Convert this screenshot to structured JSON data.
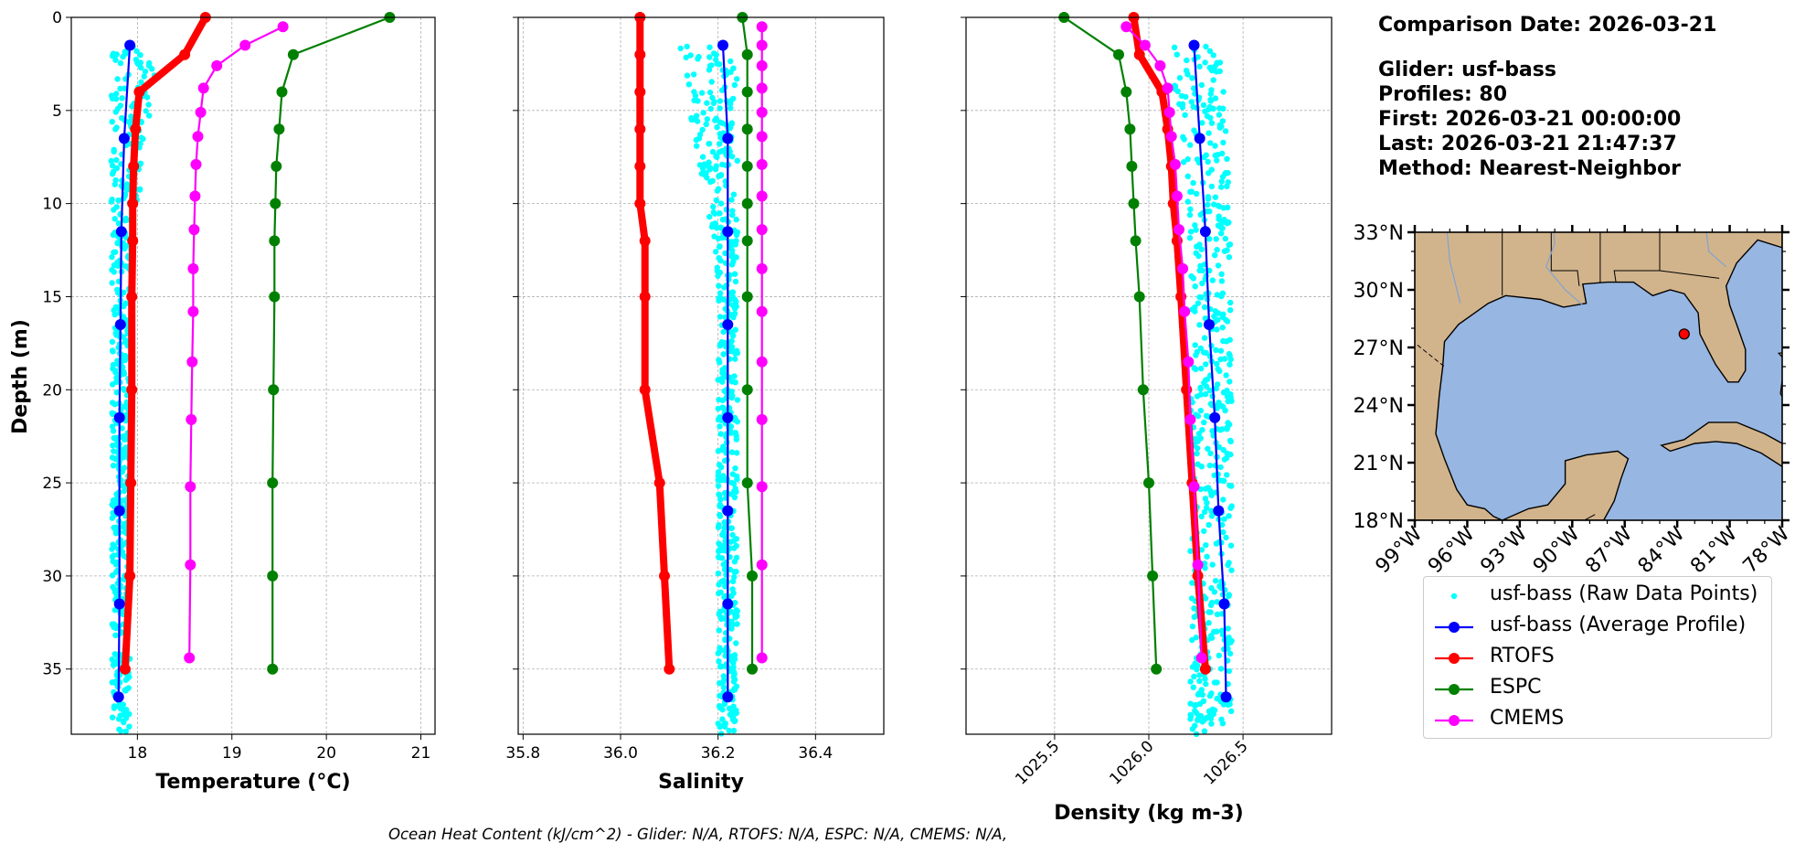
{
  "chart_data": [
    {
      "type": "line",
      "panel": "temperature",
      "xlabel": "Temperature (°C)",
      "ylabel": "Depth (m)",
      "xlim": [
        17.3,
        21.15
      ],
      "ylim": [
        38.5,
        0
      ],
      "xticks": [
        18,
        19,
        20,
        21
      ],
      "xtick_labels": [
        "18",
        "19",
        "20",
        "21"
      ],
      "yticks": [
        0,
        5,
        10,
        15,
        20,
        25,
        30,
        35
      ],
      "ytick_labels": [
        "0",
        "5",
        "10",
        "15",
        "20",
        "25",
        "30",
        "35"
      ],
      "grid": true,
      "raw_points": {
        "name": "usf-bass (Raw Data Points)",
        "depth_range": [
          1.5,
          38.5
        ],
        "value_range": [
          17.73,
          17.92
        ],
        "near_surface_spread": [
          17.7,
          18.3
        ]
      },
      "series": [
        {
          "name": "usf-bass (Average Profile)",
          "depth": [
            1.5,
            6.5,
            11.5,
            16.5,
            21.5,
            26.5,
            31.5,
            36.5
          ],
          "values": [
            17.92,
            17.86,
            17.83,
            17.82,
            17.81,
            17.81,
            17.81,
            17.8
          ]
        },
        {
          "name": "RTOFS",
          "depth": [
            0,
            2,
            4,
            6,
            8,
            10,
            12,
            15,
            20,
            25,
            30,
            35
          ],
          "values": [
            18.72,
            18.5,
            18.02,
            17.98,
            17.96,
            17.95,
            17.95,
            17.94,
            17.94,
            17.93,
            17.92,
            17.87
          ]
        },
        {
          "name": "ESPC",
          "depth": [
            0,
            2,
            4,
            6,
            8,
            10,
            12,
            15,
            20,
            25,
            30,
            35
          ],
          "values": [
            20.67,
            19.65,
            19.53,
            19.5,
            19.47,
            19.46,
            19.45,
            19.45,
            19.44,
            19.43,
            19.43,
            19.43
          ]
        },
        {
          "name": "CMEMS",
          "depth": [
            0.5,
            1.5,
            2.6,
            3.8,
            5.1,
            6.4,
            7.9,
            9.6,
            11.4,
            13.5,
            15.8,
            18.5,
            21.6,
            25.2,
            29.4,
            34.4
          ],
          "values": [
            19.54,
            19.14,
            18.84,
            18.7,
            18.67,
            18.64,
            18.62,
            18.61,
            18.6,
            18.59,
            18.59,
            18.58,
            18.57,
            18.56,
            18.56,
            18.55
          ]
        }
      ]
    },
    {
      "type": "line",
      "panel": "salinity",
      "xlabel": "Salinity",
      "xlim": [
        35.79,
        36.54
      ],
      "ylim": [
        38.5,
        0
      ],
      "xticks": [
        35.8,
        36.0,
        36.2,
        36.4
      ],
      "xtick_labels": [
        "35.8",
        "36.0",
        "36.2",
        "36.4"
      ],
      "grid": true,
      "raw_points": {
        "name": "usf-bass (Raw Data Points)",
        "depth_range": [
          1.5,
          38.5
        ],
        "value_range": [
          36.2,
          36.24
        ],
        "near_surface_spread": [
          36.12,
          36.24
        ]
      },
      "series": [
        {
          "name": "usf-bass (Average Profile)",
          "depth": [
            1.5,
            6.5,
            11.5,
            16.5,
            21.5,
            26.5,
            31.5,
            36.5
          ],
          "values": [
            36.21,
            36.22,
            36.22,
            36.22,
            36.22,
            36.22,
            36.22,
            36.22
          ]
        },
        {
          "name": "RTOFS",
          "depth": [
            0,
            2,
            4,
            6,
            8,
            10,
            12,
            15,
            20,
            25,
            30,
            35
          ],
          "values": [
            36.04,
            36.04,
            36.04,
            36.04,
            36.04,
            36.04,
            36.05,
            36.05,
            36.05,
            36.08,
            36.09,
            36.1
          ]
        },
        {
          "name": "ESPC",
          "depth": [
            0,
            2,
            4,
            6,
            8,
            10,
            12,
            15,
            20,
            25,
            30,
            35
          ],
          "values": [
            36.25,
            36.26,
            36.26,
            36.26,
            36.26,
            36.26,
            36.26,
            36.26,
            36.26,
            36.26,
            36.27,
            36.27
          ]
        },
        {
          "name": "CMEMS",
          "depth": [
            0.5,
            1.5,
            2.6,
            3.8,
            5.1,
            6.4,
            7.9,
            9.6,
            11.4,
            13.5,
            15.8,
            18.5,
            21.6,
            25.2,
            29.4,
            34.4
          ],
          "values": [
            36.29,
            36.29,
            36.29,
            36.29,
            36.29,
            36.29,
            36.29,
            36.29,
            36.29,
            36.29,
            36.29,
            36.29,
            36.29,
            36.29,
            36.29,
            36.29
          ]
        }
      ]
    },
    {
      "type": "line",
      "panel": "density",
      "xlabel": "Density (kg m-3)",
      "xlim": [
        1025.03,
        1026.97
      ],
      "ylim": [
        38.5,
        0
      ],
      "xticks": [
        1025.5,
        1026.0,
        1026.5
      ],
      "xtick_labels": [
        "1025.5",
        "1026.0",
        "1026.5"
      ],
      "grid": true,
      "raw_points": {
        "name": "usf-bass (Raw Data Points)",
        "depth_range": [
          1.5,
          38.5
        ],
        "value_range": [
          1026.22,
          1026.44
        ],
        "near_surface_spread": [
          1026.05,
          1026.3
        ]
      },
      "series": [
        {
          "name": "usf-bass (Average Profile)",
          "depth": [
            1.5,
            6.5,
            11.5,
            16.5,
            21.5,
            26.5,
            31.5,
            36.5
          ],
          "values": [
            1026.24,
            1026.27,
            1026.3,
            1026.32,
            1026.35,
            1026.37,
            1026.4,
            1026.41
          ]
        },
        {
          "name": "RTOFS",
          "depth": [
            0,
            2,
            4,
            6,
            8,
            10,
            12,
            15,
            20,
            25,
            30,
            35
          ],
          "values": [
            1025.92,
            1025.95,
            1026.07,
            1026.1,
            1026.12,
            1026.13,
            1026.15,
            1026.17,
            1026.2,
            1026.23,
            1026.26,
            1026.3
          ]
        },
        {
          "name": "ESPC",
          "depth": [
            0,
            2,
            4,
            6,
            8,
            10,
            12,
            15,
            20,
            25,
            30,
            35
          ],
          "values": [
            1025.55,
            1025.84,
            1025.88,
            1025.9,
            1025.91,
            1025.92,
            1025.93,
            1025.95,
            1025.97,
            1026.0,
            1026.02,
            1026.04
          ]
        },
        {
          "name": "CMEMS",
          "depth": [
            0.5,
            1.5,
            2.6,
            3.8,
            5.1,
            6.4,
            7.9,
            9.6,
            11.4,
            13.5,
            15.8,
            18.5,
            21.6,
            25.2,
            29.4,
            34.4
          ],
          "values": [
            1025.88,
            1025.98,
            1026.06,
            1026.1,
            1026.11,
            1026.12,
            1026.14,
            1026.15,
            1026.16,
            1026.18,
            1026.19,
            1026.21,
            1026.22,
            1026.24,
            1026.26,
            1026.28
          ]
        }
      ]
    }
  ],
  "colors": {
    "raw": "#00ffff",
    "glider": "#0000ff",
    "rtofs": "#ff0000",
    "espc": "#008000",
    "cmems": "#ff00ff",
    "ocean": "#97b6e1",
    "land": "#d2b48c",
    "marker_fill": "#ff0000"
  },
  "info": {
    "comparison_date": "Comparison Date: 2026-03-21",
    "glider": "Glider: usf-bass",
    "profiles": "Profiles: 80",
    "first": "First: 2026-03-21 00:00:00",
    "last": "Last: 2026-03-21 21:47:37",
    "method": "Method: Nearest-Neighbor"
  },
  "map": {
    "lat_labels": [
      "33°N",
      "30°N",
      "27°N",
      "24°N",
      "21°N",
      "18°N"
    ],
    "lon_labels": [
      "99°W",
      "96°W",
      "93°W",
      "90°W",
      "87°W",
      "84°W",
      "81°W",
      "78°W"
    ],
    "lon_range": [
      -99,
      -78
    ],
    "lat_range": [
      18,
      33
    ],
    "glider_location": {
      "lon": -83.6,
      "lat": 27.7
    }
  },
  "legend": [
    {
      "label": "usf-bass (Raw Data Points)",
      "symbol": "dot",
      "color_key": "raw"
    },
    {
      "label": "usf-bass (Average Profile)",
      "symbol": "line-marker",
      "color_key": "glider"
    },
    {
      "label": "RTOFS",
      "symbol": "line-marker",
      "color_key": "rtofs"
    },
    {
      "label": "ESPC",
      "symbol": "line-marker",
      "color_key": "espc"
    },
    {
      "label": "CMEMS",
      "symbol": "line-marker",
      "color_key": "cmems"
    }
  ],
  "footer": {
    "ohc": "Ocean Heat Content (kJ/cm^2) - Glider: N/A,  RTOFS: N/A,  ESPC: N/A,  CMEMS: N/A,"
  }
}
